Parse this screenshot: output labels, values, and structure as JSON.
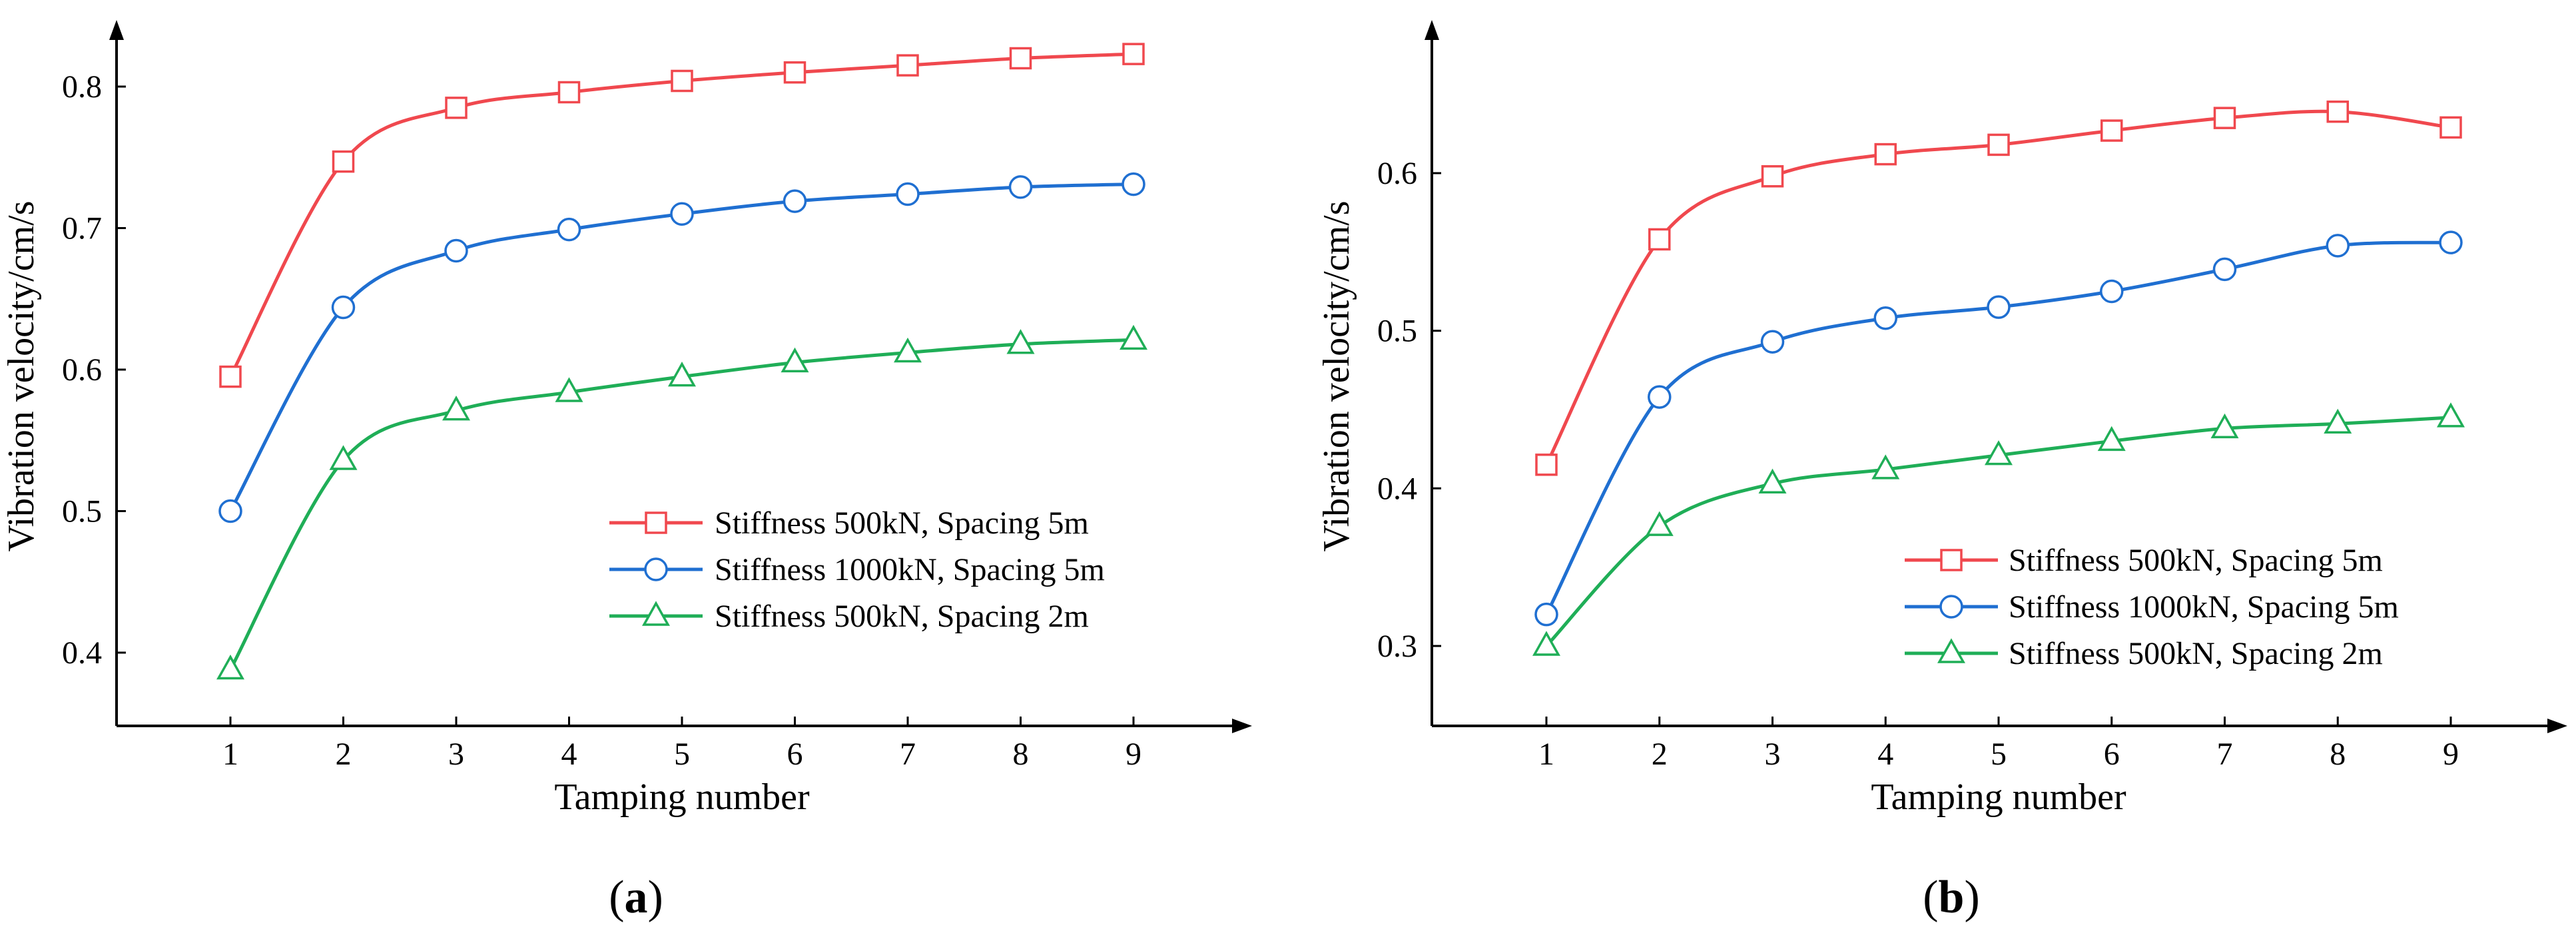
{
  "chart_data": [
    {
      "type": "line",
      "panel_label": "a",
      "title": "",
      "xlabel": "Tamping number",
      "ylabel": "Vibration velocity/cm/s",
      "x": [
        1,
        2,
        3,
        4,
        5,
        6,
        7,
        8,
        9
      ],
      "x_ticks": [
        "1",
        "2",
        "3",
        "4",
        "5",
        "6",
        "7",
        "8",
        "9"
      ],
      "xlim": [
        0,
        9.9
      ],
      "ylim": [
        0.37,
        0.85
      ],
      "y_ticks": [
        0.4,
        0.5,
        0.6,
        0.7,
        0.8
      ],
      "y_tick_labels": [
        "0.4",
        "0.5",
        "0.6",
        "0.7",
        "0.8"
      ],
      "grid": false,
      "legend_position": "bottom-right",
      "series": [
        {
          "name": "Stiffness 500kN, Spacing 5m",
          "color": "#f0484e",
          "marker": "square",
          "values": [
            0.595,
            0.747,
            0.785,
            0.796,
            0.804,
            0.81,
            0.815,
            0.82,
            0.823
          ]
        },
        {
          "name": "Stiffness 1000kN, Spacing 5m",
          "color": "#1f6fd1",
          "marker": "circle",
          "values": [
            0.5,
            0.644,
            0.684,
            0.699,
            0.71,
            0.719,
            0.724,
            0.729,
            0.731
          ]
        },
        {
          "name": "Stiffness 500kN, Spacing 2m",
          "color": "#1fae57",
          "marker": "triangle",
          "values": [
            0.388,
            0.536,
            0.571,
            0.584,
            0.595,
            0.605,
            0.612,
            0.618,
            0.621
          ]
        }
      ]
    },
    {
      "type": "line",
      "panel_label": "b",
      "title": "",
      "xlabel": "Tamping number",
      "ylabel": "Vibration velocity/cm/s",
      "x": [
        1,
        2,
        3,
        4,
        5,
        6,
        7,
        8,
        9
      ],
      "x_ticks": [
        "1",
        "2",
        "3",
        "4",
        "5",
        "6",
        "7",
        "8",
        "9"
      ],
      "xlim": [
        0,
        9.9
      ],
      "ylim": [
        0.25,
        0.7
      ],
      "y_ticks": [
        0.3,
        0.4,
        0.5,
        0.6
      ],
      "y_tick_labels": [
        "0.3",
        "0.4",
        "0.5",
        "0.6"
      ],
      "grid": false,
      "legend_position": "bottom-right",
      "series": [
        {
          "name": "Stiffness 500kN, Spacing 5m",
          "color": "#f0484e",
          "marker": "square",
          "values": [
            0.415,
            0.558,
            0.598,
            0.612,
            0.618,
            0.627,
            0.635,
            0.639,
            0.629
          ]
        },
        {
          "name": "Stiffness 1000kN, Spacing 5m",
          "color": "#1f6fd1",
          "marker": "circle",
          "values": [
            0.32,
            0.458,
            0.493,
            0.508,
            0.515,
            0.525,
            0.539,
            0.554,
            0.556
          ]
        },
        {
          "name": "Stiffness 500kN, Spacing 2m",
          "color": "#1fae57",
          "marker": "triangle",
          "values": [
            0.3,
            0.376,
            0.403,
            0.412,
            0.421,
            0.43,
            0.438,
            0.441,
            0.445
          ]
        }
      ]
    }
  ]
}
